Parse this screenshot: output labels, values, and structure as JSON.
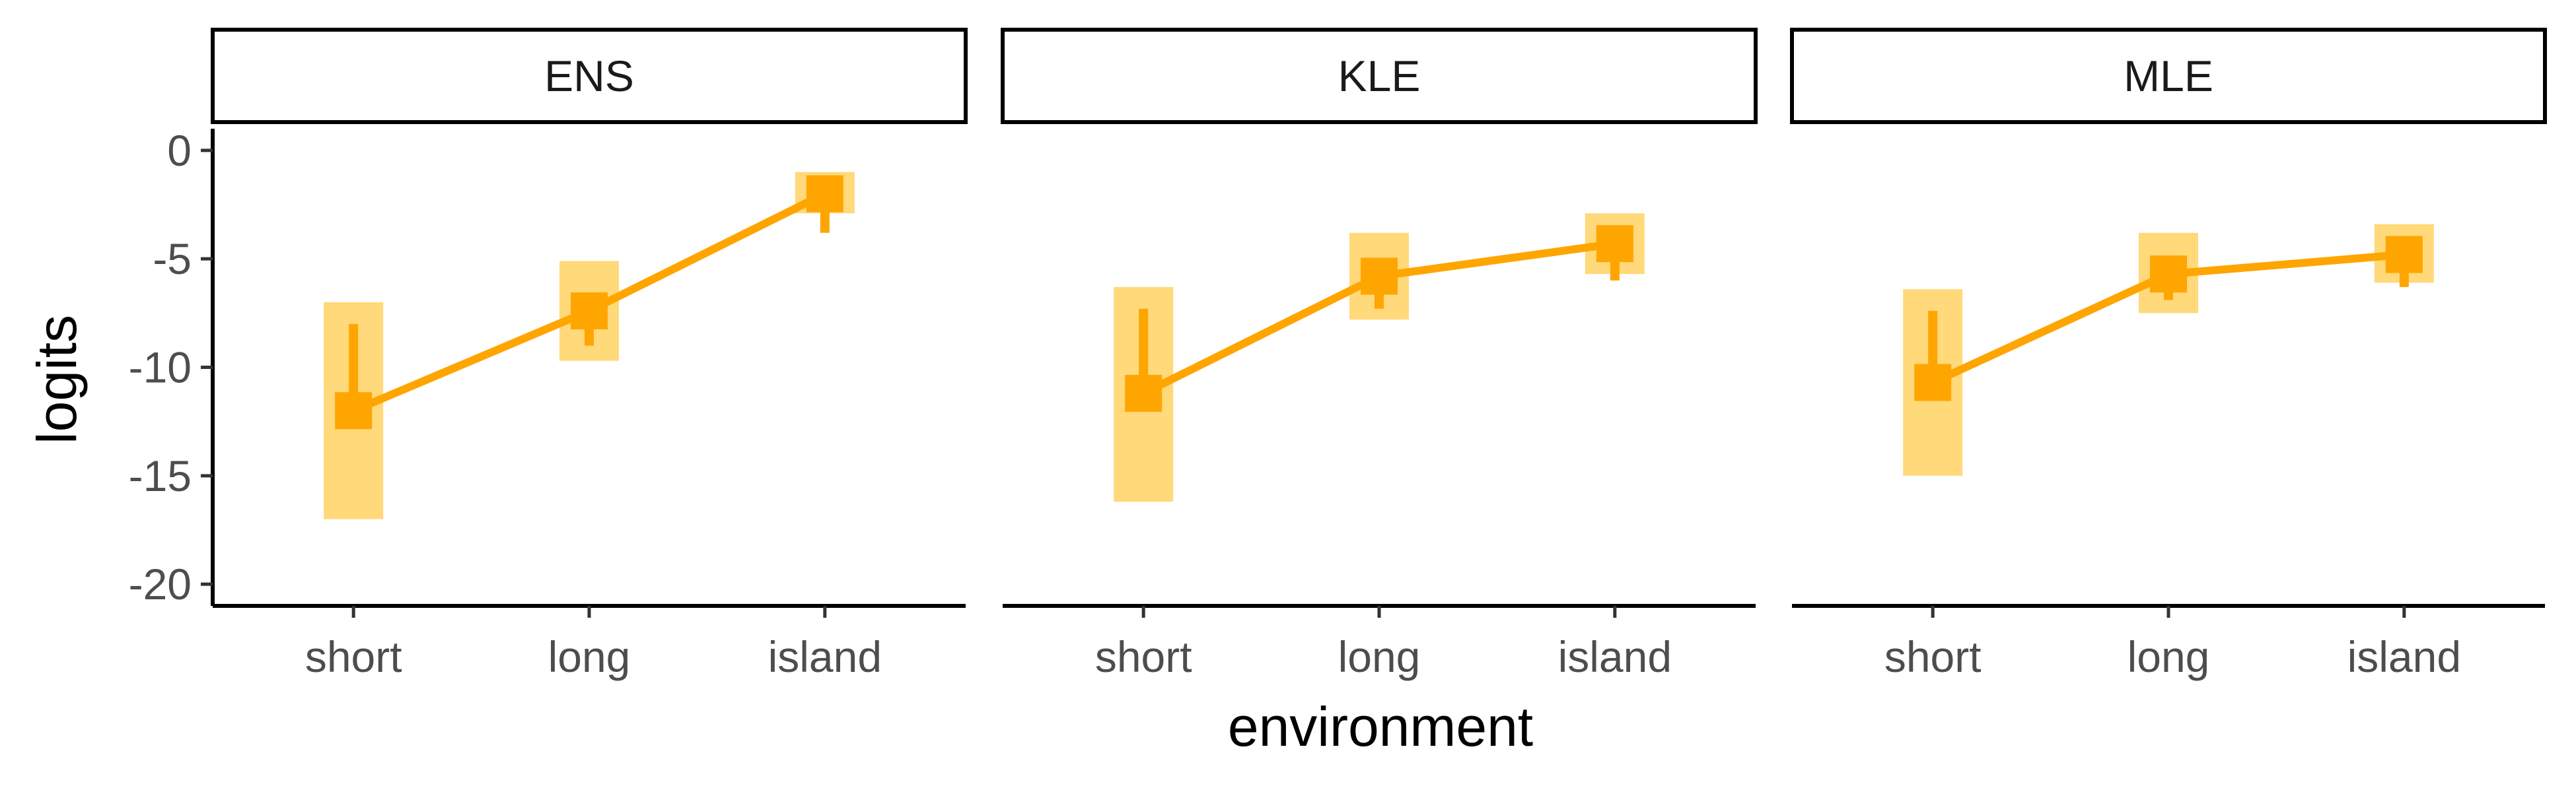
{
  "chart_data": {
    "type": "line",
    "xlabel": "environment",
    "ylabel": "logits",
    "categories": [
      "short",
      "long",
      "island"
    ],
    "ylim": [
      -21,
      1
    ],
    "yticks": [
      0,
      -5,
      -10,
      -15,
      -20
    ],
    "grid": false,
    "legend": "none",
    "color": "#FFA500",
    "band_color": "#FFD97A",
    "panels": [
      {
        "title": "ENS",
        "points": [
          {
            "x": "short",
            "y": -12.0,
            "whisker": [
              -12.0,
              -8.0
            ],
            "band": [
              -17.0,
              -7.0
            ]
          },
          {
            "x": "long",
            "y": -7.4,
            "whisker": [
              -9.0,
              -6.6
            ],
            "band": [
              -9.7,
              -5.1
            ]
          },
          {
            "x": "island",
            "y": -2.0,
            "whisker": [
              -3.8,
              -1.5
            ],
            "band": [
              -2.9,
              -1.0
            ]
          }
        ]
      },
      {
        "title": "KLE",
        "points": [
          {
            "x": "short",
            "y": -11.2,
            "whisker": [
              -11.2,
              -7.3
            ],
            "band": [
              -16.2,
              -6.3
            ]
          },
          {
            "x": "long",
            "y": -5.8,
            "whisker": [
              -7.3,
              -5.0
            ],
            "band": [
              -7.8,
              -3.8
            ]
          },
          {
            "x": "island",
            "y": -4.3,
            "whisker": [
              -6.0,
              -3.8
            ],
            "band": [
              -5.7,
              -2.9
            ]
          }
        ]
      },
      {
        "title": "MLE",
        "points": [
          {
            "x": "short",
            "y": -10.7,
            "whisker": [
              -10.7,
              -7.4
            ],
            "band": [
              -15.0,
              -6.4
            ]
          },
          {
            "x": "long",
            "y": -5.7,
            "whisker": [
              -6.9,
              -5.0
            ],
            "band": [
              -7.5,
              -3.8
            ]
          },
          {
            "x": "island",
            "y": -4.8,
            "whisker": [
              -6.3,
              -4.2
            ],
            "band": [
              -6.1,
              -3.4
            ]
          }
        ]
      }
    ]
  }
}
